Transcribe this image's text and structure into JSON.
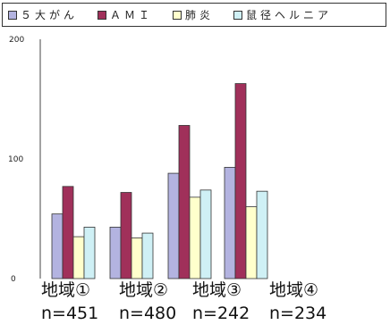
{
  "chart_data": {
    "type": "bar",
    "categories": [
      "地域①",
      "地域②",
      "地域③",
      "地域④"
    ],
    "category_counts": [
      "n=451",
      "n=480",
      "n=242",
      "n=234"
    ],
    "series": [
      {
        "name": "５大がん",
        "color": "#b3b3e0",
        "values": [
          54,
          43,
          88,
          93
        ]
      },
      {
        "name": "ＡＭＩ",
        "color": "#a0305a",
        "values": [
          77,
          72,
          128,
          163
        ]
      },
      {
        "name": "肺炎",
        "color": "#ffffcc",
        "values": [
          35,
          34,
          68,
          60
        ]
      },
      {
        "name": "鼠径ヘルニア",
        "color": "#cff0f5",
        "values": [
          43,
          38,
          74,
          73
        ]
      }
    ],
    "yticks": [
      "0",
      "100",
      "200"
    ],
    "ylim": [
      0,
      200
    ],
    "legend_position": "top",
    "grid": false
  }
}
